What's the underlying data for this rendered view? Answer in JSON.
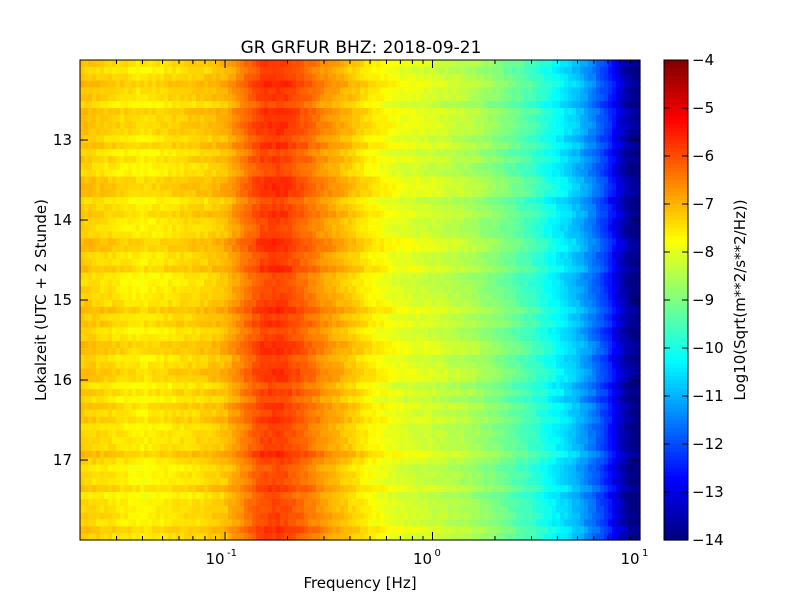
{
  "chart_data": {
    "type": "heatmap",
    "title": "GR GRFUR BHZ: 2018-09-21",
    "xlabel": "Frequency [Hz]",
    "ylabel": "Lokalzeit (UTC + 2 Stunde)",
    "colorbar_label": "Log10(Sqrt(m**2/s**2/Hz))",
    "colormap": "jet",
    "x_scale": "log",
    "xlim": [
      0.02,
      10
    ],
    "ylim": [
      18.0,
      12.0
    ],
    "y_inverted": true,
    "clim": [
      -14,
      -4
    ],
    "x_ticks": [
      0.1,
      1,
      10
    ],
    "x_tick_labels": [
      {
        "base": "10",
        "exp": "-1"
      },
      {
        "base": "10",
        "exp": "0"
      },
      {
        "base": "10",
        "exp": "1"
      }
    ],
    "y_ticks": [
      13,
      14,
      15,
      16,
      17
    ],
    "y_tick_labels": [
      "13",
      "14",
      "15",
      "16",
      "17"
    ],
    "colorbar_ticks": [
      -4,
      -5,
      -6,
      -7,
      -8,
      -9,
      -10,
      -11,
      -12,
      -13,
      -14
    ],
    "colorbar_tick_labels": [
      "−4",
      "−5",
      "−6",
      "−7",
      "−8",
      "−9",
      "−10",
      "−11",
      "−12",
      "−13",
      "−14"
    ],
    "mean_spectrum": {
      "frequency_hz": [
        0.02,
        0.04,
        0.06,
        0.08,
        0.1,
        0.13,
        0.15,
        0.18,
        0.2,
        0.25,
        0.3,
        0.4,
        0.5,
        0.7,
        1.0,
        1.5,
        2.0,
        3.0,
        4.0,
        5.0,
        6.0,
        7.0,
        8.0,
        9.0,
        10.0
      ],
      "log10_amplitude": [
        -7.2,
        -7.6,
        -7.4,
        -7.3,
        -7.1,
        -6.3,
        -5.9,
        -5.8,
        -5.9,
        -6.3,
        -6.7,
        -7.2,
        -7.6,
        -8.0,
        -8.2,
        -8.5,
        -8.9,
        -9.6,
        -10.3,
        -10.9,
        -11.6,
        -12.3,
        -13.2,
        -13.8,
        -14.0
      ]
    },
    "time_rows": 70,
    "row_noise_amplitude": 0.25
  }
}
